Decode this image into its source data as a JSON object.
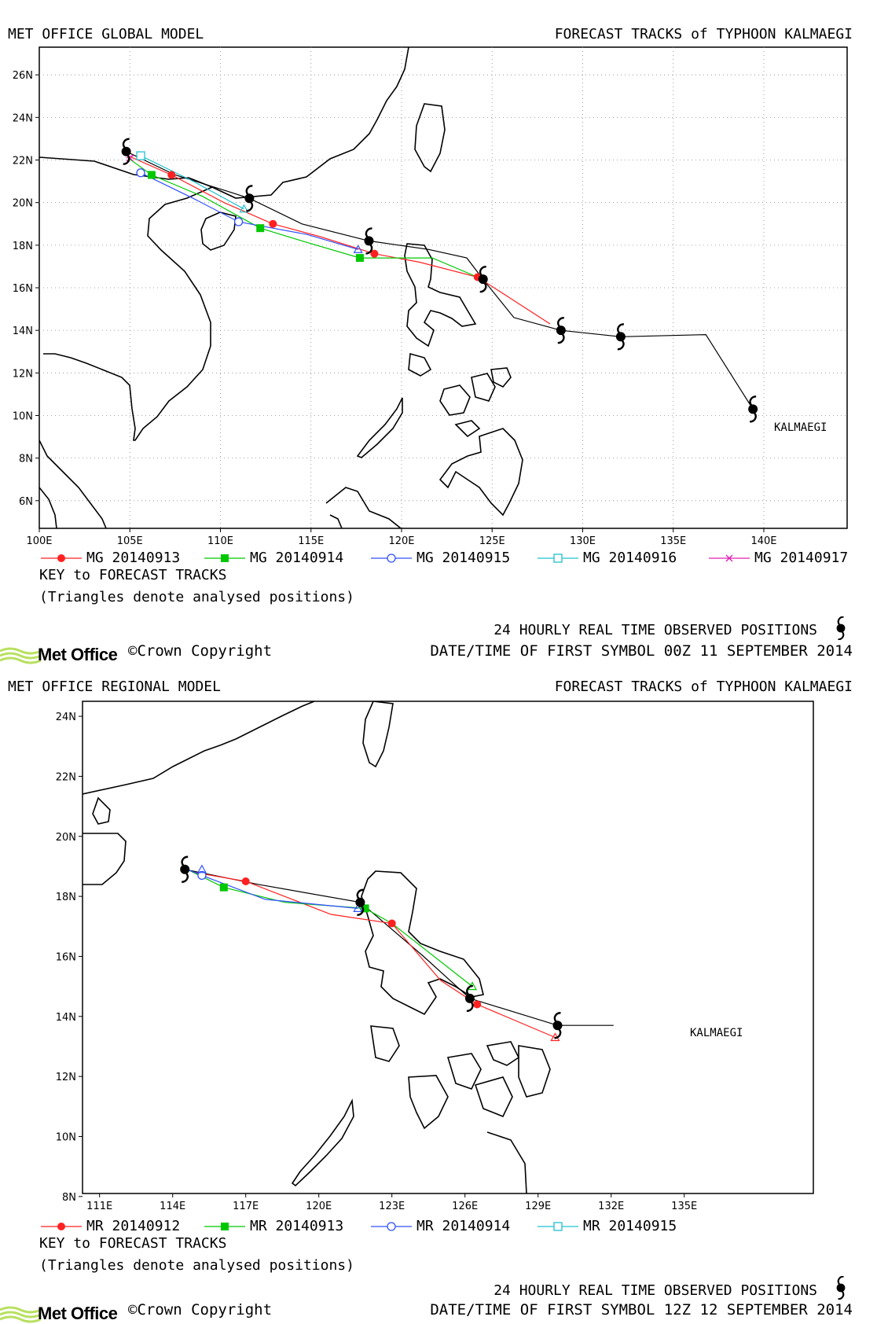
{
  "colors": {
    "red": "#ff2020",
    "green": "#00c800",
    "blue": "#3050ff",
    "cyan": "#20c0d0",
    "magenta": "#e020b0",
    "black": "#000000"
  },
  "global": {
    "model_title": "MET OFFICE GLOBAL MODEL",
    "forecast_title": "FORECAST TRACKS of TYPHOON KALMAEGI",
    "lon_ticks": [
      "100E",
      "105E",
      "110E",
      "115E",
      "120E",
      "125E",
      "130E",
      "135E",
      "140E"
    ],
    "lat_ticks": [
      "26N",
      "24N",
      "22N",
      "20N",
      "18N",
      "16N",
      "14N",
      "12N",
      "10N",
      "8N",
      "6N"
    ],
    "storm_label": "KALMAEGI",
    "legend": [
      {
        "label": "MG 20140913",
        "color": "#ff2020",
        "marker": "filled-circle"
      },
      {
        "label": "MG 20140914",
        "color": "#00c800",
        "marker": "filled-square"
      },
      {
        "label": "MG 20140915",
        "color": "#3050ff",
        "marker": "open-circle"
      },
      {
        "label": "MG 20140916",
        "color": "#20c0d0",
        "marker": "open-square"
      },
      {
        "label": "MG 20140917",
        "color": "#e020b0",
        "marker": "cross"
      }
    ],
    "key_title": "KEY to FORECAST TRACKS",
    "key_note": "(Triangles denote analysed positions)",
    "observed_label": "24 HOURLY REAL TIME OBSERVED POSITIONS",
    "first_symbol": "DATE/TIME OF FIRST SYMBOL 00Z 11 SEPTEMBER 2014",
    "logo_text": "Met Office",
    "copyright": "©Crown Copyright",
    "observed_track": [
      [
        139.4,
        10.3
      ],
      [
        136.8,
        13.8
      ],
      [
        132.1,
        13.7
      ],
      [
        128.8,
        14.0
      ],
      [
        126.2,
        14.6
      ],
      [
        124.5,
        16.4
      ],
      [
        123.6,
        17.4
      ],
      [
        121.5,
        17.8
      ],
      [
        118.2,
        18.2
      ],
      [
        114.5,
        19.0
      ],
      [
        111.6,
        20.2
      ],
      [
        110.5,
        20.5
      ],
      [
        107.5,
        21.3
      ],
      [
        104.8,
        22.4
      ]
    ],
    "observed_symbols": [
      [
        139.4,
        10.3
      ],
      [
        132.1,
        13.7
      ],
      [
        128.8,
        14.0
      ],
      [
        124.5,
        16.4
      ],
      [
        118.2,
        18.2
      ],
      [
        111.6,
        20.2
      ],
      [
        104.8,
        22.4
      ]
    ],
    "forecasts": [
      {
        "name": "MG 20140913",
        "color": "#ff2020",
        "marker": "filled-circle",
        "points": [
          [
            128.2,
            14.3
          ],
          [
            126.2,
            15.4
          ],
          [
            124.2,
            16.5
          ],
          [
            121.0,
            17.2
          ],
          [
            118.5,
            17.6
          ],
          [
            115.5,
            18.4
          ],
          [
            112.9,
            19.0
          ],
          [
            110.2,
            20.0
          ],
          [
            107.3,
            21.3
          ],
          [
            104.9,
            22.2
          ]
        ],
        "markers": [
          [
            124.2,
            16.5
          ],
          [
            118.5,
            17.6
          ],
          [
            112.9,
            19.0
          ],
          [
            107.3,
            21.3
          ]
        ]
      },
      {
        "name": "MG 20140914",
        "color": "#00c800",
        "marker": "filled-square",
        "points": [
          [
            124.2,
            16.5
          ],
          [
            121.7,
            17.4
          ],
          [
            119.8,
            17.4
          ],
          [
            117.7,
            17.4
          ],
          [
            114.5,
            18.2
          ],
          [
            112.2,
            18.8
          ],
          [
            109.0,
            20.3
          ],
          [
            106.2,
            21.3
          ],
          [
            104.9,
            22.1
          ]
        ],
        "markers": [
          [
            117.7,
            17.4
          ],
          [
            112.2,
            18.8
          ],
          [
            106.2,
            21.3
          ]
        ]
      },
      {
        "name": "MG 20140915",
        "color": "#3050ff",
        "marker": "open-circle",
        "points": [
          [
            117.6,
            17.8
          ],
          [
            114.8,
            18.5
          ],
          [
            111.0,
            19.1
          ],
          [
            108.5,
            20.2
          ],
          [
            105.6,
            21.4
          ]
        ],
        "markers": [
          [
            111.0,
            19.1
          ],
          [
            105.6,
            21.4
          ]
        ]
      },
      {
        "name": "MG 20140916",
        "color": "#20c0d0",
        "marker": "open-square",
        "points": [
          [
            111.3,
            19.7
          ],
          [
            108.5,
            21.0
          ],
          [
            105.6,
            22.2
          ]
        ],
        "markers": [
          [
            105.6,
            22.2
          ]
        ]
      },
      {
        "name": "MG 20140917",
        "color": "#e020b0",
        "marker": "cross",
        "points": [
          [
            105.2,
            22.2
          ],
          [
            104.8,
            22.1
          ]
        ],
        "markers": [
          [
            105.0,
            22.1
          ]
        ]
      }
    ],
    "triangles": [
      [
        117.6,
        17.8
      ],
      [
        111.3,
        19.7
      ]
    ]
  },
  "regional": {
    "model_title": "MET OFFICE REGIONAL MODEL",
    "forecast_title": "FORECAST TRACKS of TYPHOON KALMAEGI",
    "lon_ticks": [
      "111E",
      "114E",
      "117E",
      "120E",
      "123E",
      "126E",
      "129E",
      "132E",
      "135E"
    ],
    "lat_ticks": [
      "24N",
      "22N",
      "20N",
      "18N",
      "16N",
      "14N",
      "12N",
      "10N",
      "8N"
    ],
    "storm_label": "KALMAEGI",
    "legend": [
      {
        "label": "MR 20140912",
        "color": "#ff2020",
        "marker": "filled-circle"
      },
      {
        "label": "MR 20140913",
        "color": "#00c800",
        "marker": "filled-square"
      },
      {
        "label": "MR 20140914",
        "color": "#3050ff",
        "marker": "open-circle"
      },
      {
        "label": "MR 20140915",
        "color": "#20c0d0",
        "marker": "open-square"
      }
    ],
    "key_title": "KEY to FORECAST TRACKS",
    "key_note": "(Triangles denote analysed positions)",
    "observed_label": "24 HOURLY REAL TIME OBSERVED POSITIONS",
    "first_symbol": "DATE/TIME OF FIRST SYMBOL 12Z 12 SEPTEMBER 2014",
    "logo_text": "Met Office",
    "copyright": "©Crown Copyright",
    "observed_track": [
      [
        132.1,
        13.7
      ],
      [
        129.8,
        13.7
      ],
      [
        126.2,
        14.6
      ],
      [
        124.3,
        16.0
      ],
      [
        122.0,
        17.6
      ],
      [
        121.7,
        17.8
      ],
      [
        117.5,
        18.4
      ],
      [
        114.5,
        18.9
      ]
    ],
    "observed_symbols": [
      [
        129.8,
        13.7
      ],
      [
        126.2,
        14.6
      ],
      [
        121.7,
        17.8
      ],
      [
        114.5,
        18.9
      ]
    ],
    "forecasts": [
      {
        "name": "MR 20140912",
        "color": "#ff2020",
        "marker": "filled-circle",
        "points": [
          [
            129.7,
            13.3
          ],
          [
            126.5,
            14.4
          ],
          [
            125.0,
            15.2
          ],
          [
            123.0,
            17.1
          ],
          [
            120.5,
            17.4
          ],
          [
            117.0,
            18.5
          ],
          [
            114.9,
            18.8
          ]
        ],
        "markers": [
          [
            126.5,
            14.4
          ],
          [
            123.0,
            17.1
          ],
          [
            117.0,
            18.5
          ]
        ]
      },
      {
        "name": "MR 20140913",
        "color": "#00c800",
        "marker": "filled-square",
        "points": [
          [
            126.3,
            15.0
          ],
          [
            123.0,
            17.1
          ],
          [
            121.9,
            17.6
          ],
          [
            118.6,
            17.8
          ],
          [
            116.1,
            18.3
          ],
          [
            114.6,
            18.9
          ]
        ],
        "markers": [
          [
            121.9,
            17.6
          ],
          [
            116.1,
            18.3
          ]
        ]
      },
      {
        "name": "MR 20140914",
        "color": "#3050ff",
        "marker": "open-circle",
        "points": [
          [
            121.6,
            17.6
          ],
          [
            117.8,
            17.9
          ],
          [
            115.2,
            18.7
          ],
          [
            114.6,
            18.9
          ]
        ],
        "markers": [
          [
            115.2,
            18.7
          ]
        ]
      },
      {
        "name": "MR 20140915",
        "color": "#20c0d0",
        "marker": "open-square",
        "points": [],
        "markers": []
      }
    ],
    "triangles": [
      [
        129.7,
        13.3
      ],
      [
        126.3,
        15.0
      ],
      [
        121.6,
        17.6
      ],
      [
        115.2,
        18.9
      ]
    ]
  }
}
